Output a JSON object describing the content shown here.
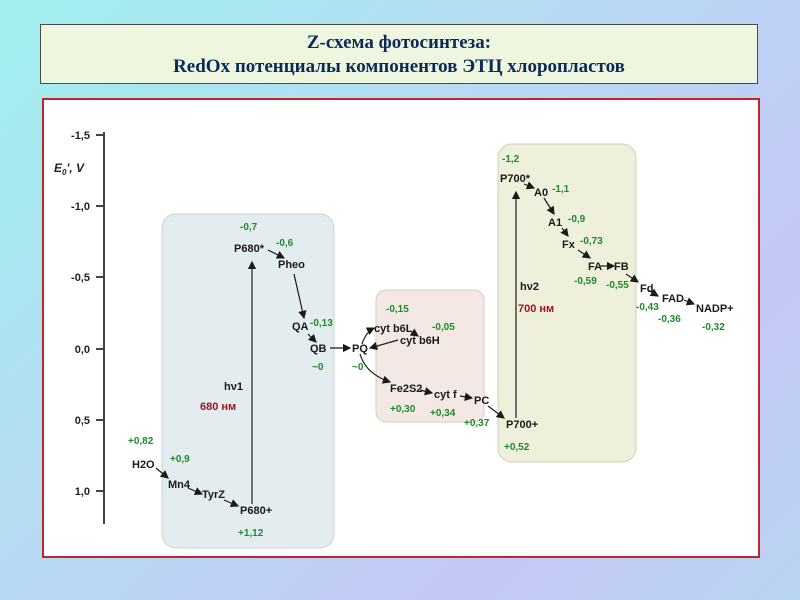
{
  "title": {
    "line1": "Z-схема фотосинтеза:",
    "line2": "RedOx потенциалы компонентов ЭТЦ хлоропластов"
  },
  "axis": {
    "label_main": "E",
    "label_sub": "0",
    "label_rest": "', V",
    "ticks": [
      "-1,5",
      "-1,0",
      "-0,5",
      "0,0",
      "0,5",
      "1,0"
    ]
  },
  "psii": {
    "p680star": "P680*",
    "p680star_val": "-0,7",
    "pheo": "Pheo",
    "pheo_val": "-0,6",
    "qa": "QA",
    "qa_val": "-0,13",
    "qb": "QB",
    "qb_val": "~0",
    "hv": "hν1",
    "nm": "680 нм",
    "h2o": "H2O",
    "h2o_val": "+0,82",
    "mn": "Mn4",
    "mn_val": "+0,9",
    "tyr": "TyrZ",
    "p680plus": "P680+",
    "p680plus_val": "+1,12"
  },
  "cytb6f": {
    "pq": "PQ",
    "pq_val": "~0",
    "b6l": "cyt b6L",
    "b6l_val": "-0,15",
    "b6h": "cyt b6H",
    "b6h_val": "-0,05",
    "fes": "Fe2S2",
    "fes_val": "+0,30",
    "cytf": "cyt f",
    "cytf_val": "+0,34"
  },
  "pc": {
    "label": "PC",
    "val": "+0,37"
  },
  "psi": {
    "p700star": "P700*",
    "p700star_val": "-1,2",
    "a0": "A0",
    "a0_val": "-1,1",
    "a1": "A1",
    "a1_val": "-0,9",
    "fx": "Fx",
    "fx_val": "-0,73",
    "fa": "FA",
    "fa_val": "-0,59",
    "fb": "FB",
    "fb_val": "-0,55",
    "fd": "Fd",
    "fd_val": "-0,43",
    "fad": "FAD",
    "fad_val": "-0,36",
    "nadp": "NADP+",
    "nadp_val": "-0,32",
    "hv": "hν2",
    "nm": "700 нм",
    "p700plus": "P700+",
    "p700plus_val": "+0,52"
  },
  "colors": {
    "accent_green": "#1f8a2a",
    "accent_red": "#a0161c",
    "psii_bg": "#e3ecee",
    "cyt_bg": "#f3e8e3",
    "psi_bg": "#eef0dc"
  }
}
